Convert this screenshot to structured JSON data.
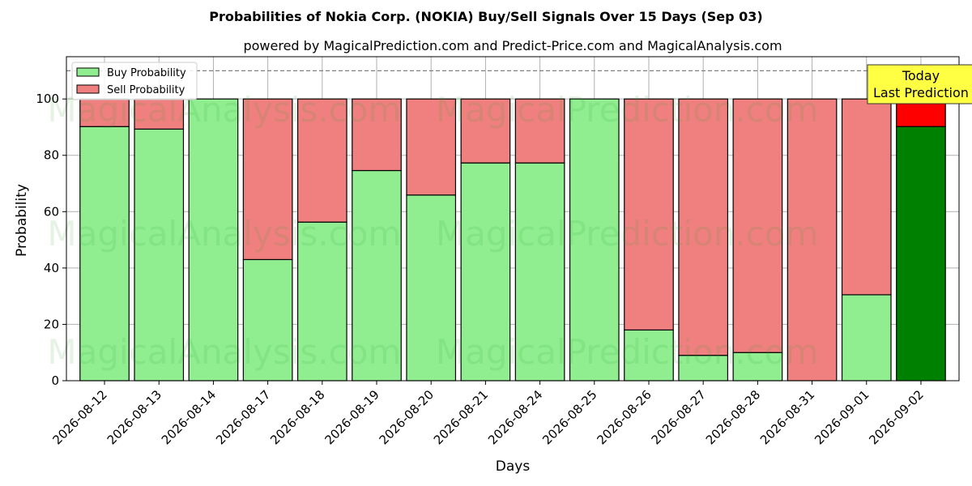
{
  "chart_data": {
    "type": "bar",
    "stacked": true,
    "title": "Probabilities of Nokia Corp. (NOKIA) Buy/Sell Signals Over 15 Days (Sep 03)",
    "subtitle": "powered by MagicalPrediction.com and Predict-Price.com and MagicalAnalysis.com",
    "xlabel": "Days",
    "ylabel": "Probability",
    "ylim": [
      0,
      115
    ],
    "yticks": [
      0,
      20,
      40,
      60,
      80,
      100
    ],
    "grid": true,
    "reference_line": 110,
    "legend_position": "top-left",
    "categories": [
      "2026-08-12",
      "2026-08-13",
      "2026-08-14",
      "2026-08-17",
      "2026-08-18",
      "2026-08-19",
      "2026-08-20",
      "2026-08-21",
      "2026-08-24",
      "2026-08-25",
      "2026-08-26",
      "2026-08-27",
      "2026-08-28",
      "2026-08-31",
      "2026-09-01",
      "2026-09-02"
    ],
    "series": [
      {
        "name": "Buy Probability",
        "color": "#90ee90",
        "values": [
          90.2,
          89.3,
          100,
          43.0,
          56.3,
          74.6,
          65.9,
          77.3,
          77.3,
          100,
          18.0,
          9.0,
          10.0,
          0,
          30.5,
          90.2
        ]
      },
      {
        "name": "Sell Probability",
        "color": "#f08080",
        "values": [
          9.8,
          10.7,
          0,
          57.0,
          43.7,
          25.4,
          34.1,
          22.7,
          22.7,
          0,
          82.0,
          91.0,
          90.0,
          100,
          69.5,
          9.8
        ]
      }
    ],
    "highlight": {
      "index": 15,
      "buy_color": "#008000",
      "sell_color": "#ff0000"
    },
    "annotation": {
      "lines": [
        "Today",
        "Last Prediction"
      ],
      "background": "#ffff44"
    },
    "watermarks": [
      "MagicalAnalysis.com",
      "MagicalPrediction.com"
    ]
  }
}
